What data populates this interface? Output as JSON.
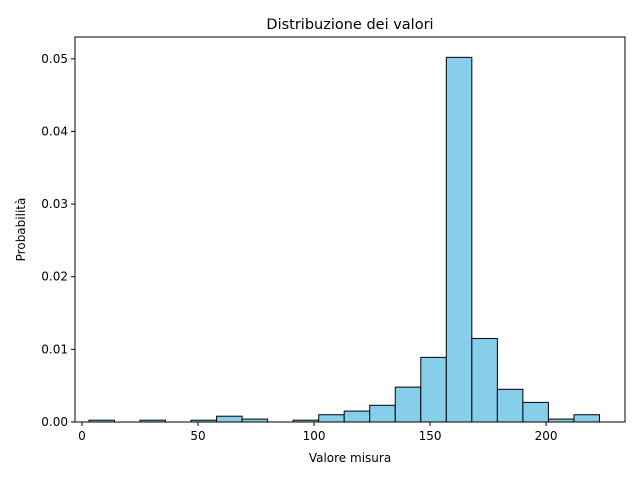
{
  "chart_data": {
    "type": "bar",
    "subtype": "histogram",
    "title": "Distribuzione dei valori",
    "xlabel": "Valore misura",
    "ylabel": "Probabilità",
    "xlim": [
      -3,
      234
    ],
    "ylim": [
      0,
      0.053
    ],
    "x_ticks": [
      0,
      50,
      100,
      150,
      200
    ],
    "x_tick_labels": [
      "0",
      "50",
      "100",
      "150",
      "200"
    ],
    "y_ticks": [
      0,
      0.01,
      0.02,
      0.03,
      0.04,
      0.05
    ],
    "y_tick_labels": [
      "0.00",
      "0.01",
      "0.02",
      "0.03",
      "0.04",
      "0.05"
    ],
    "bin_edges": [
      3,
      14,
      25,
      36,
      47,
      58,
      69,
      80,
      91,
      102,
      113,
      124,
      135,
      146,
      157,
      168,
      179,
      190,
      201,
      212,
      223
    ],
    "values": [
      0.00025,
      0,
      0.00025,
      0,
      0.00025,
      0.0008,
      0.0004,
      0,
      0.00025,
      0.001,
      0.0015,
      0.0023,
      0.0048,
      0.0089,
      0.0502,
      0.0115,
      0.0045,
      0.0027,
      0.0004,
      0.001
    ],
    "grid": false,
    "colors": {
      "bar_fill": "#87ceeb",
      "bar_edge": "#000000"
    }
  }
}
